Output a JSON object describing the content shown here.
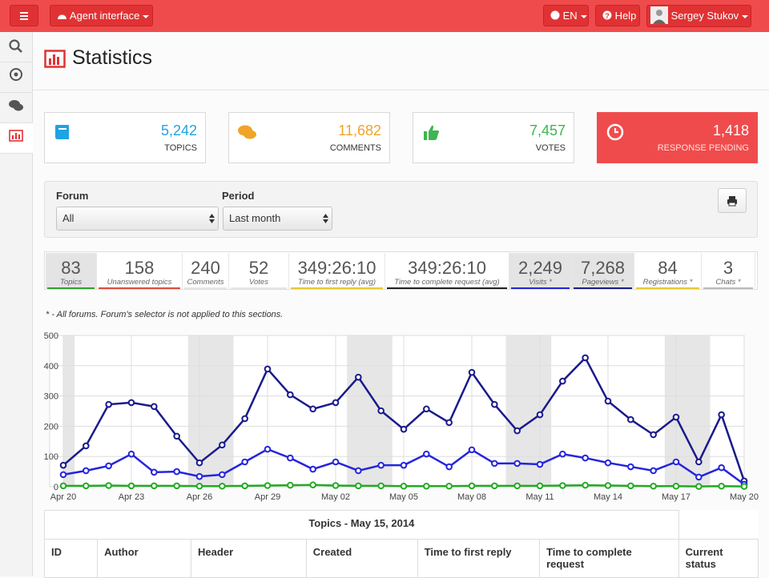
{
  "topbar": {
    "agent_interface": "Agent interface",
    "language": "EN",
    "help": "Help",
    "user": "Sergey Stukov"
  },
  "header": {
    "title": "Statistics"
  },
  "summary": [
    {
      "value": "5,242",
      "label": "TOPICS",
      "color": "#1fa3e3"
    },
    {
      "value": "11,682",
      "label": "COMMENTS",
      "color": "#f0a428"
    },
    {
      "value": "7,457",
      "label": "VOTES",
      "color": "#3eb54f"
    },
    {
      "value": "1,418",
      "label": "RESPONSE PENDING",
      "color": "#f04b4c"
    }
  ],
  "filters": {
    "forum": {
      "label": "Forum",
      "value": "All"
    },
    "period": {
      "label": "Period",
      "value": "Last month"
    }
  },
  "stats": [
    {
      "value": "83",
      "label": "Topics",
      "color": "#2aa52a",
      "selected": true
    },
    {
      "value": "158",
      "label": "Unanswered topics",
      "color": "#e04a3a",
      "selected": false
    },
    {
      "value": "240",
      "label": "Comments",
      "color": "#e6e6e6",
      "selected": false
    },
    {
      "value": "52",
      "label": "Votes",
      "color": "#e6e6e6",
      "selected": false
    },
    {
      "value": "349:26:10",
      "label": "Time to first reply (avg)",
      "color": "#e8c832",
      "selected": false
    },
    {
      "value": "349:26:10",
      "label": "Time to complete request (avg)",
      "color": "#222222",
      "selected": false
    },
    {
      "value": "2,249",
      "label": "Visits *",
      "color": "#2525dd",
      "selected": true
    },
    {
      "value": "7,268",
      "label": "Pageviews *",
      "color": "#1a1a8c",
      "selected": true
    },
    {
      "value": "84",
      "label": "Registrations *",
      "color": "#e8c832",
      "selected": false
    },
    {
      "value": "3",
      "label": "Chats *",
      "color": "#bbbbbb",
      "selected": false
    }
  ],
  "note": "* - All forums. Forum's selector is not applied to this sections.",
  "chart_data": {
    "type": "line",
    "categories": [
      "Apr 20",
      null,
      null,
      "Apr 23",
      null,
      null,
      "Apr 26",
      null,
      null,
      "Apr 29",
      null,
      null,
      "May 02",
      null,
      null,
      "May 05",
      null,
      null,
      "May 08",
      null,
      null,
      "May 11",
      null,
      null,
      "May 14",
      null,
      null,
      "May 17",
      null,
      null,
      "May 20"
    ],
    "series": [
      {
        "color": "#1a1a8c",
        "values": [
          71,
          135,
          272,
          278,
          265,
          167,
          79,
          138,
          225,
          389,
          304,
          257,
          278,
          362,
          251,
          190,
          257,
          212,
          378,
          272,
          185,
          238,
          349,
          426,
          283,
          222,
          172,
          230,
          82,
          238,
          19
        ]
      },
      {
        "color": "#2525dd",
        "values": [
          40,
          53,
          69,
          108,
          48,
          50,
          34,
          40,
          82,
          124,
          95,
          58,
          82,
          53,
          71,
          71,
          108,
          66,
          122,
          77,
          77,
          74,
          108,
          95,
          79,
          66,
          53,
          82,
          32,
          63,
          8
        ]
      },
      {
        "color": "#22aa22",
        "values": [
          3,
          3,
          4,
          3,
          3,
          3,
          2,
          2,
          3,
          4,
          5,
          6,
          4,
          3,
          3,
          2,
          2,
          2,
          3,
          3,
          3,
          3,
          4,
          5,
          4,
          3,
          2,
          2,
          1,
          2,
          1
        ]
      }
    ],
    "ylim": [
      0,
      500
    ],
    "yticks": [
      0,
      100,
      200,
      300,
      400,
      500
    ],
    "grid": true
  },
  "table": {
    "title": "Topics - May 15, 2014",
    "columns": [
      "ID",
      "Author",
      "Header",
      "Created",
      "Time to first reply",
      "Time to complete request",
      "Current status"
    ]
  }
}
